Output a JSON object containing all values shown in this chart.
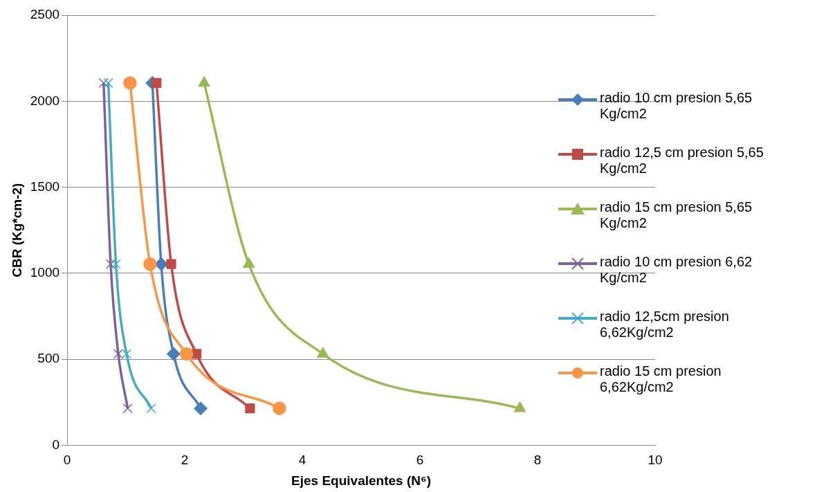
{
  "chart_data": {
    "type": "line",
    "xlabel": "Ejes Equivalentes (N⁶)",
    "ylabel": "CBR (Kg*cm-2)",
    "xlim": [
      0,
      10
    ],
    "xticks": [
      0,
      2,
      4,
      6,
      8,
      10
    ],
    "ylim": [
      0,
      2500
    ],
    "yticks": [
      0,
      500,
      1000,
      1500,
      2000,
      2500
    ],
    "grid": "y",
    "legend": "right",
    "series": [
      {
        "name": "radio 10 cm presion 5,65 Kg/cm2",
        "color": "#4a7ebb",
        "marker": "diamond",
        "x": [
          1.45,
          1.6,
          1.81,
          2.27
        ],
        "values": [
          2106,
          1053,
          531,
          214
        ]
      },
      {
        "name": "radio 12,5 cm presion 5,65 Kg/cm2",
        "color": "#be4b48",
        "marker": "square",
        "x": [
          1.52,
          1.77,
          2.2,
          3.11
        ],
        "values": [
          2106,
          1053,
          531,
          214
        ]
      },
      {
        "name": "radio 15 cm presion 5,65 Kg/cm2",
        "color": "#98b954",
        "marker": "triangle",
        "x": [
          2.33,
          3.09,
          4.35,
          7.7
        ],
        "values": [
          2106,
          1053,
          531,
          214
        ]
      },
      {
        "name": "radio 10 cm presion 6,62 Kg/cm2",
        "color": "#7d60a0",
        "marker": "cross",
        "x": [
          0.62,
          0.74,
          0.87,
          1.03
        ],
        "values": [
          2106,
          1053,
          531,
          214
        ]
      },
      {
        "name": "radio 12,5cm presion 6,62Kg/cm2",
        "color": "#46aac5",
        "marker": "cross",
        "x": [
          0.7,
          0.83,
          1.01,
          1.43
        ],
        "values": [
          2106,
          1053,
          531,
          214
        ]
      },
      {
        "name": "radio 15 cm presion 6,62Kg/cm2",
        "color": "#f79646",
        "marker": "circle",
        "x": [
          1.07,
          1.41,
          2.03,
          3.61
        ],
        "values": [
          2106,
          1053,
          531,
          214
        ]
      }
    ]
  }
}
